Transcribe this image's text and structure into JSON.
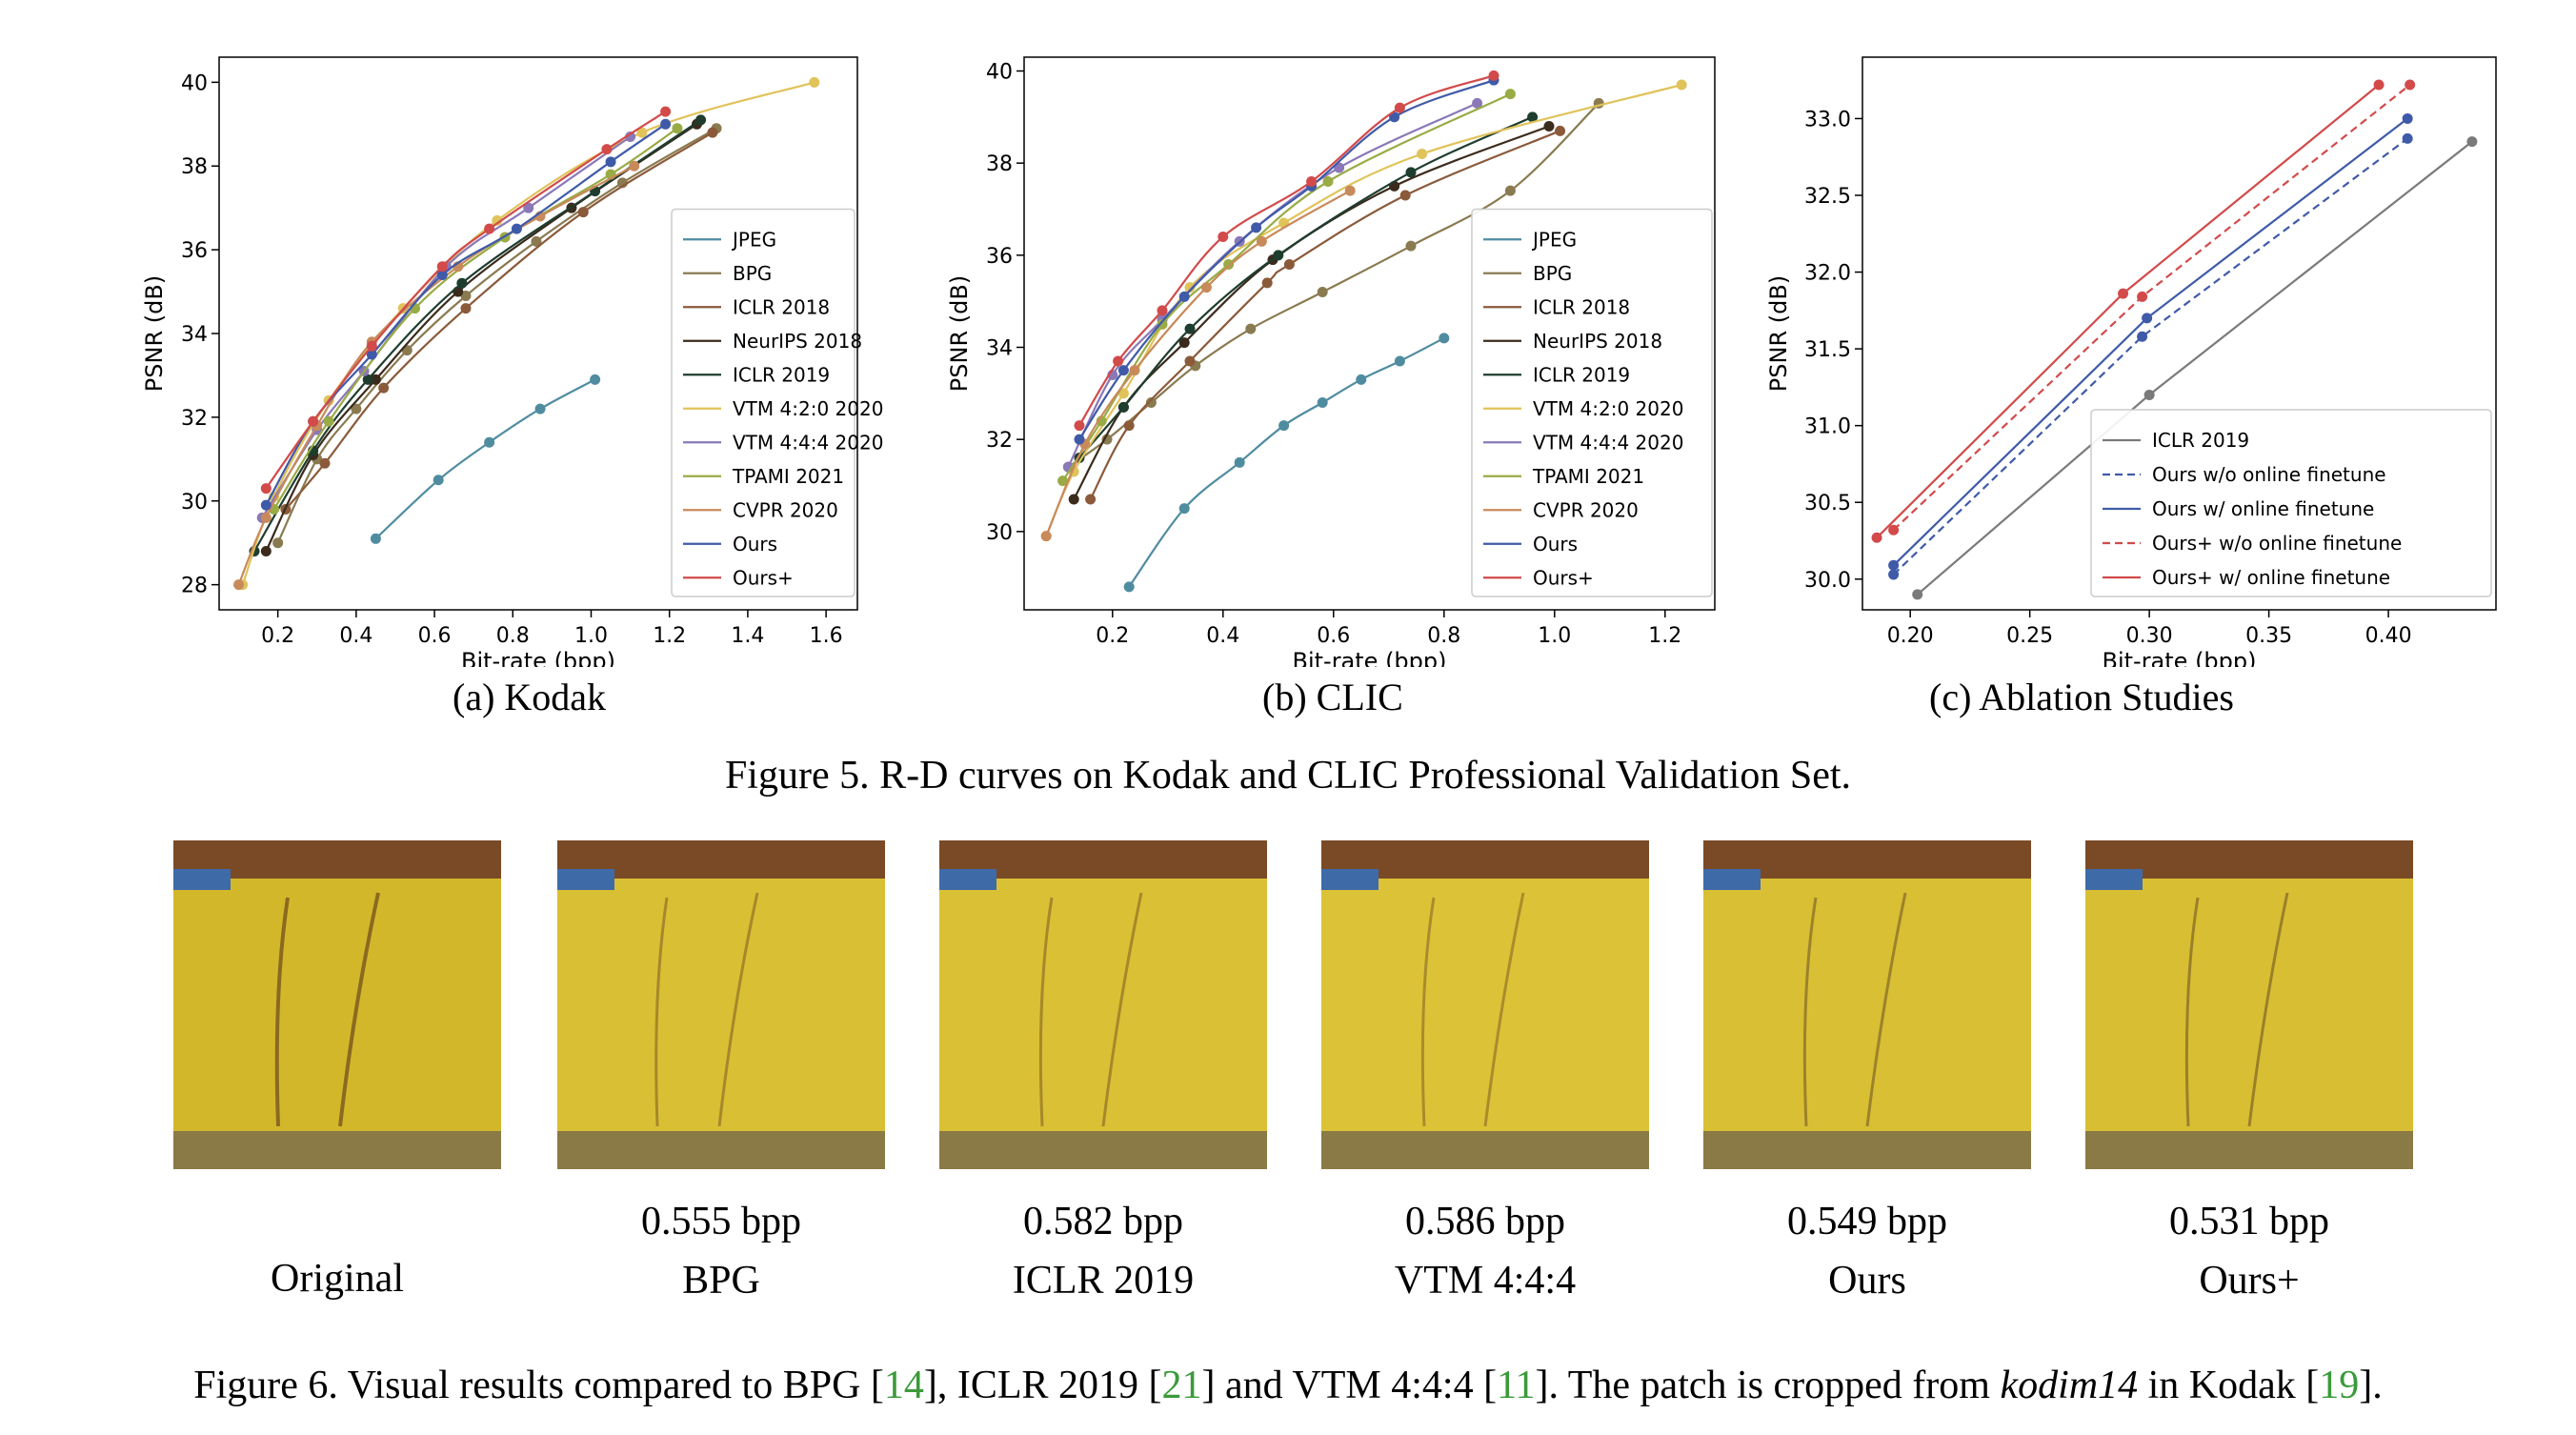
{
  "figure5": {
    "caption": "Figure 5. R-D curves on Kodak and CLIC Professional Validation Set.",
    "subcaptions": [
      "(a) Kodak",
      "(b) CLIC",
      "(c) Ablation Studies"
    ]
  },
  "figure6": {
    "caption_parts": {
      "p1": "Figure 6. Visual results compared to BPG [",
      "r1": "14",
      "p2": "], ICLR 2019 [",
      "r2": "21",
      "p3": "] and VTM 4:4:4 [",
      "r3": "11",
      "p4": "]. The patch is cropped from ",
      "italic": "kodim14",
      "p5": " in Kodak [",
      "r4": "19",
      "p6": "]."
    },
    "patches": [
      {
        "bpp": "",
        "label": "Original"
      },
      {
        "bpp": "0.555 bpp",
        "label": "BPG"
      },
      {
        "bpp": "0.582 bpp",
        "label": "ICLR 2019"
      },
      {
        "bpp": "0.586 bpp",
        "label": "VTM 4:4:4"
      },
      {
        "bpp": "0.549 bpp",
        "label": "Ours"
      },
      {
        "bpp": "0.531 bpp",
        "label": "Ours+"
      }
    ],
    "colors": {
      "yellow": "#d8bc2c",
      "brown": "#7a4a26",
      "dark": "#3b2b1c",
      "blue": "#3f6aa8"
    }
  },
  "chart_data": [
    {
      "type": "line",
      "xlabel": "Bit-rate (bpp)",
      "ylabel": "PSNR (dB)",
      "xlim": [
        0.05,
        1.68
      ],
      "ylim": [
        27.4,
        40.6
      ],
      "xticks": [
        0.2,
        0.4,
        0.6,
        0.8,
        1.0,
        1.2,
        1.4,
        1.6
      ],
      "yticks": [
        28,
        30,
        32,
        34,
        36,
        38,
        40
      ],
      "tick_decimals": 1,
      "ytick_decimals": 0,
      "legend_position": "lower-right",
      "series": [
        {
          "name": "JPEG",
          "color": "#4f8ca0",
          "x": [
            0.45,
            0.61,
            0.74,
            0.87,
            1.01
          ],
          "y": [
            29.1,
            30.5,
            31.4,
            32.2,
            32.9
          ]
        },
        {
          "name": "BPG",
          "color": "#8a7a50",
          "x": [
            0.2,
            0.3,
            0.4,
            0.53,
            0.68,
            0.86,
            1.08,
            1.32
          ],
          "y": [
            29.0,
            31.0,
            32.2,
            33.6,
            34.9,
            36.2,
            37.6,
            38.9
          ]
        },
        {
          "name": "ICLR 2018",
          "color": "#8a5a3a",
          "x": [
            0.22,
            0.32,
            0.47,
            0.68,
            0.98,
            1.31
          ],
          "y": [
            29.8,
            30.9,
            32.7,
            34.6,
            36.9,
            38.8
          ]
        },
        {
          "name": "NeurIPS 2018",
          "color": "#3b2b1c",
          "x": [
            0.17,
            0.29,
            0.45,
            0.66,
            0.95,
            1.27
          ],
          "y": [
            28.8,
            31.1,
            32.9,
            35.0,
            37.0,
            39.0
          ]
        },
        {
          "name": "ICLR 2019",
          "color": "#1e3d2e",
          "x": [
            0.14,
            0.29,
            0.43,
            0.67,
            1.01,
            1.28
          ],
          "y": [
            28.8,
            31.2,
            32.9,
            35.2,
            37.4,
            39.1
          ]
        },
        {
          "name": "VTM 4:2:0 2020",
          "color": "#e0c35a",
          "x": [
            0.11,
            0.19,
            0.33,
            0.52,
            0.76,
            1.13,
            1.57
          ],
          "y": [
            28.0,
            30.1,
            32.4,
            34.6,
            36.7,
            38.8,
            40.0
          ]
        },
        {
          "name": "VTM 4:4:4 2020",
          "color": "#8a78b8",
          "x": [
            0.16,
            0.3,
            0.42,
            0.63,
            0.84,
            1.1
          ],
          "y": [
            29.6,
            31.7,
            33.1,
            35.6,
            37.0,
            38.7
          ]
        },
        {
          "name": "TPAMI 2021",
          "color": "#99ab45",
          "x": [
            0.19,
            0.33,
            0.55,
            0.78,
            1.05,
            1.22
          ],
          "y": [
            29.8,
            31.9,
            34.6,
            36.3,
            37.8,
            38.9
          ]
        },
        {
          "name": "CVPR 2020",
          "color": "#c88a5a",
          "x": [
            0.1,
            0.17,
            0.3,
            0.44,
            0.66,
            0.87,
            1.11
          ],
          "y": [
            28.0,
            29.6,
            31.8,
            33.8,
            35.6,
            36.8,
            38.0
          ]
        },
        {
          "name": "Ours",
          "color": "#3f5aa8",
          "x": [
            0.17,
            0.29,
            0.44,
            0.62,
            0.81,
            1.05,
            1.19
          ],
          "y": [
            29.9,
            31.9,
            33.5,
            35.4,
            36.5,
            38.1,
            39.0
          ]
        },
        {
          "name": "Ours+",
          "color": "#d24a4a",
          "x": [
            0.17,
            0.29,
            0.44,
            0.62,
            0.74,
            1.04,
            1.19
          ],
          "y": [
            30.3,
            31.9,
            33.7,
            35.6,
            36.5,
            38.4,
            39.3
          ]
        }
      ]
    },
    {
      "type": "line",
      "xlabel": "Bit-rate (bpp)",
      "ylabel": "PSNR (dB)",
      "xlim": [
        0.04,
        1.29
      ],
      "ylim": [
        28.3,
        40.3
      ],
      "xticks": [
        0.2,
        0.4,
        0.6,
        0.8,
        1.0,
        1.2
      ],
      "yticks": [
        30,
        32,
        34,
        36,
        38,
        40
      ],
      "tick_decimals": 1,
      "ytick_decimals": 0,
      "legend_position": "lower-right",
      "series": [
        {
          "name": "JPEG",
          "color": "#4f8ca0",
          "x": [
            0.23,
            0.33,
            0.43,
            0.51,
            0.58,
            0.65,
            0.72,
            0.8
          ],
          "y": [
            28.8,
            30.5,
            31.5,
            32.3,
            32.8,
            33.3,
            33.7,
            34.2
          ]
        },
        {
          "name": "BPG",
          "color": "#8a7a50",
          "x": [
            0.12,
            0.19,
            0.27,
            0.35,
            0.45,
            0.58,
            0.74,
            0.92,
            1.08
          ],
          "y": [
            31.4,
            32.0,
            32.8,
            33.6,
            34.4,
            35.2,
            36.2,
            37.4,
            39.3
          ]
        },
        {
          "name": "ICLR 2018",
          "color": "#8a5a3a",
          "x": [
            0.16,
            0.23,
            0.34,
            0.48,
            0.52,
            0.73,
            1.01
          ],
          "y": [
            30.7,
            32.3,
            33.7,
            35.4,
            35.8,
            37.3,
            38.7
          ]
        },
        {
          "name": "NeurIPS 2018",
          "color": "#3b2b1c",
          "x": [
            0.13,
            0.22,
            0.33,
            0.49,
            0.71,
            0.99
          ],
          "y": [
            30.7,
            32.7,
            34.1,
            35.9,
            37.5,
            38.8
          ]
        },
        {
          "name": "ICLR 2019",
          "color": "#1e3d2e",
          "x": [
            0.14,
            0.22,
            0.34,
            0.5,
            0.74,
            0.96
          ],
          "y": [
            31.6,
            32.7,
            34.4,
            36.0,
            37.8,
            39.0
          ]
        },
        {
          "name": "VTM 4:2:0 2020",
          "color": "#e0c35a",
          "x": [
            0.08,
            0.13,
            0.22,
            0.34,
            0.51,
            0.76,
            1.23
          ],
          "y": [
            29.9,
            31.3,
            33.0,
            35.3,
            36.7,
            38.2,
            39.7
          ]
        },
        {
          "name": "VTM 4:4:4 2020",
          "color": "#8a78b8",
          "x": [
            0.12,
            0.2,
            0.29,
            0.43,
            0.61,
            0.86
          ],
          "y": [
            31.4,
            33.4,
            34.6,
            36.3,
            37.9,
            39.3
          ]
        },
        {
          "name": "TPAMI 2021",
          "color": "#99ab45",
          "x": [
            0.11,
            0.18,
            0.29,
            0.41,
            0.59,
            0.92
          ],
          "y": [
            31.1,
            32.4,
            34.5,
            35.8,
            37.6,
            39.5
          ]
        },
        {
          "name": "CVPR 2020",
          "color": "#c88a5a",
          "x": [
            0.08,
            0.15,
            0.24,
            0.37,
            0.47,
            0.63
          ],
          "y": [
            29.9,
            31.9,
            33.5,
            35.3,
            36.3,
            37.4
          ]
        },
        {
          "name": "Ours",
          "color": "#3f5aa8",
          "x": [
            0.14,
            0.22,
            0.33,
            0.46,
            0.56,
            0.71,
            0.89
          ],
          "y": [
            32.0,
            33.5,
            35.1,
            36.6,
            37.5,
            39.0,
            39.8
          ]
        },
        {
          "name": "Ours+",
          "color": "#d24a4a",
          "x": [
            0.14,
            0.21,
            0.29,
            0.4,
            0.56,
            0.72,
            0.89
          ],
          "y": [
            32.3,
            33.7,
            34.8,
            36.4,
            37.6,
            39.2,
            39.9
          ]
        }
      ]
    },
    {
      "type": "line",
      "xlabel": "Bit-rate (bpp)",
      "ylabel": "PSNR (dB)",
      "xlim": [
        0.18,
        0.445
      ],
      "ylim": [
        29.8,
        33.4
      ],
      "xticks": [
        0.2,
        0.25,
        0.3,
        0.35,
        0.4
      ],
      "yticks": [
        30.0,
        30.5,
        31.0,
        31.5,
        32.0,
        32.5,
        33.0
      ],
      "tick_decimals": 2,
      "ytick_decimals": 1,
      "legend_position": "lower-right",
      "series": [
        {
          "name": "ICLR 2019",
          "color": "#7a7a7a",
          "dash": false,
          "x": [
            0.203,
            0.3,
            0.435
          ],
          "y": [
            29.9,
            31.2,
            32.85
          ]
        },
        {
          "name": "Ours w/o online finetune",
          "color": "#3f5aa8",
          "dash": true,
          "x": [
            0.193,
            0.297,
            0.408
          ],
          "y": [
            30.03,
            31.58,
            32.87
          ]
        },
        {
          "name": "Ours w/ online finetune",
          "color": "#3f5aa8",
          "dash": false,
          "x": [
            0.193,
            0.299,
            0.408
          ],
          "y": [
            30.09,
            31.7,
            33.0
          ]
        },
        {
          "name": "Ours+ w/o online finetune",
          "color": "#d24a4a",
          "dash": true,
          "x": [
            0.193,
            0.297,
            0.409
          ],
          "y": [
            30.32,
            31.84,
            33.22
          ]
        },
        {
          "name": "Ours+ w/ online finetune",
          "color": "#d24a4a",
          "dash": false,
          "x": [
            0.186,
            0.289,
            0.396
          ],
          "y": [
            30.27,
            31.86,
            33.22
          ]
        }
      ]
    }
  ]
}
